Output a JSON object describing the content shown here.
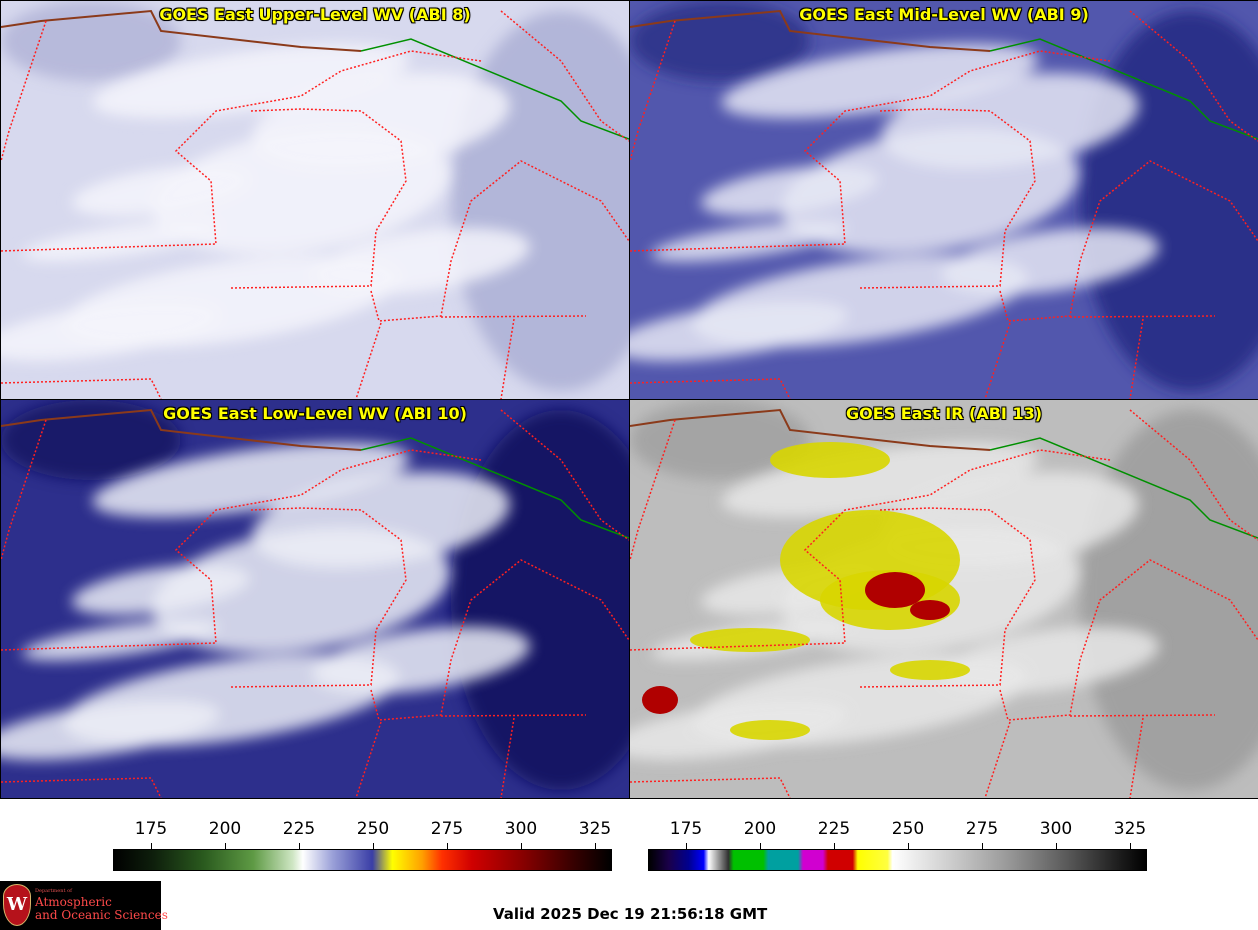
{
  "panels": [
    {
      "title": "GOES East Upper-Level WV (ABI 8)",
      "base": "#d7d9ee",
      "cloud": "#f4f5fb",
      "dark": "#a9acd3"
    },
    {
      "title": "GOES East Mid-Level WV (ABI 9)",
      "base": "#5257ad",
      "cloud": "#e6e7f4",
      "dark": "#22267f"
    },
    {
      "title": "GOES East Low-Level WV (ABI 10)",
      "base": "#2d2f8c",
      "cloud": "#eceef7",
      "dark": "#0d0f5a"
    },
    {
      "title": "GOES East IR (ABI 13)",
      "base": "#bdbdbd",
      "cloud": "#e8e8e8",
      "dark": "#9a9a9a"
    }
  ],
  "colorbars": [
    {
      "ticks": [
        "175",
        "200",
        "225",
        "250",
        "275",
        "300",
        "325"
      ]
    },
    {
      "ticks": [
        "175",
        "200",
        "225",
        "250",
        "275",
        "300",
        "325"
      ]
    }
  ],
  "footer": {
    "valid_text": "Valid 2025 Dec 19 21:56:18 GMT",
    "logo_dept": "Department of",
    "logo_line1": "Atmospheric",
    "logo_line2": "and Oceanic Sciences"
  },
  "colors": {
    "state_border": "#ff2020",
    "canada_border": "#009000",
    "coast": "#8b3a1a",
    "title_text": "#ffff00"
  }
}
